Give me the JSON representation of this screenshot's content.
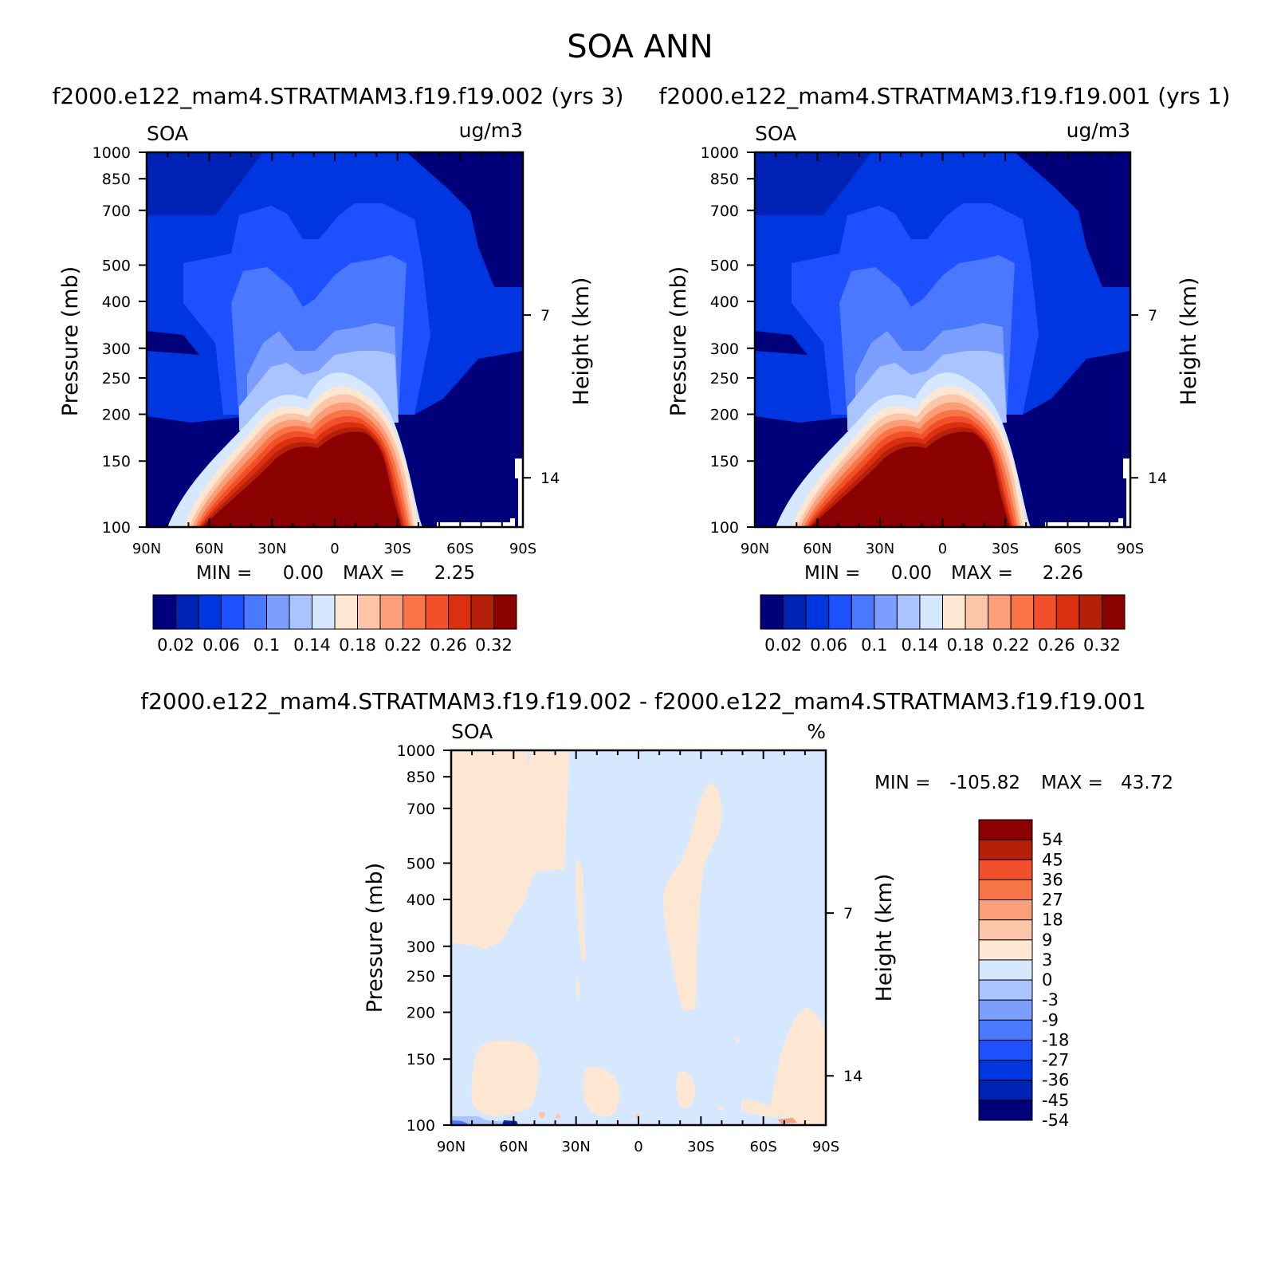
{
  "figure": {
    "title": "SOA ANN",
    "case1": "f2000.e122_mam4.STRATMAM3.f19.f19.002 (yrs 3)",
    "case2": "f2000.e122_mam4.STRATMAM3.f19.f19.001 (yrs 1)",
    "diff_title": "f2000.e122_mam4.STRATMAM3.f19.f19.002 - f2000.e122_mam4.STRATMAM3.f19.f19.001"
  },
  "chart_data": [
    {
      "type": "heatmap",
      "variable": "SOA",
      "units": "ug/m3",
      "ylabel": "Pressure (mb)",
      "ylabel_right": "Height (km)",
      "x_ticks": [
        "90N",
        "60N",
        "30N",
        "0",
        "30S",
        "60S",
        "90S"
      ],
      "y_ticks": [
        "100",
        "150",
        "200",
        "250",
        "300",
        "400",
        "500",
        "700",
        "850",
        "1000"
      ],
      "height_ticks": [
        "14",
        "7"
      ],
      "ylim": [
        1000,
        100
      ],
      "min_label": "MIN =",
      "min_value": "0.00",
      "max_label": "MAX =",
      "max_value": "2.25",
      "colorbar_labels": [
        "0.02",
        "0.06",
        "0.1",
        "0.14",
        "0.18",
        "0.22",
        "0.26",
        "0.32"
      ]
    },
    {
      "type": "heatmap",
      "variable": "SOA",
      "units": "ug/m3",
      "ylabel": "Pressure (mb)",
      "ylabel_right": "Height (km)",
      "x_ticks": [
        "90N",
        "60N",
        "30N",
        "0",
        "30S",
        "60S",
        "90S"
      ],
      "y_ticks": [
        "100",
        "150",
        "200",
        "250",
        "300",
        "400",
        "500",
        "700",
        "850",
        "1000"
      ],
      "height_ticks": [
        "14",
        "7"
      ],
      "ylim": [
        1000,
        100
      ],
      "min_label": "MIN =",
      "min_value": "0.00",
      "max_label": "MAX =",
      "max_value": "2.26",
      "colorbar_labels": [
        "0.02",
        "0.06",
        "0.1",
        "0.14",
        "0.18",
        "0.22",
        "0.26",
        "0.32"
      ]
    },
    {
      "type": "heatmap",
      "variable": "SOA",
      "units": "%",
      "ylabel": "Pressure (mb)",
      "ylabel_right": "Height (km)",
      "x_ticks": [
        "90N",
        "60N",
        "30N",
        "0",
        "30S",
        "60S",
        "90S"
      ],
      "y_ticks": [
        "100",
        "150",
        "200",
        "250",
        "300",
        "400",
        "500",
        "700",
        "850",
        "1000"
      ],
      "height_ticks": [
        "14",
        "7"
      ],
      "ylim": [
        1000,
        100
      ],
      "min_label": "MIN =",
      "min_value": "-105.82",
      "max_label": "MAX =",
      "max_value": "43.72",
      "colorbar_labels": [
        "54",
        "45",
        "36",
        "27",
        "18",
        "9",
        "3",
        "0",
        "-3",
        "-9",
        "-18",
        "-27",
        "-36",
        "-45",
        "-54"
      ]
    }
  ],
  "colors": {
    "seq": [
      "#00007a",
      "#0022b4",
      "#0036e0",
      "#1f50ff",
      "#4a78ff",
      "#7c9fff",
      "#aac4ff",
      "#d6e8ff",
      "#fde7d3",
      "#fdc6a8",
      "#fb9f7a",
      "#f97548",
      "#f2502a",
      "#db300f",
      "#b5200a",
      "#8b0000"
    ],
    "diff": [
      "#8b0000",
      "#b5200a",
      "#f2502a",
      "#f97548",
      "#fb9f7a",
      "#fdc6a8",
      "#fde7d3",
      "#d6e8ff",
      "#aac4ff",
      "#7c9fff",
      "#4a78ff",
      "#1f50ff",
      "#0036e0",
      "#0022b4",
      "#00007a"
    ]
  }
}
